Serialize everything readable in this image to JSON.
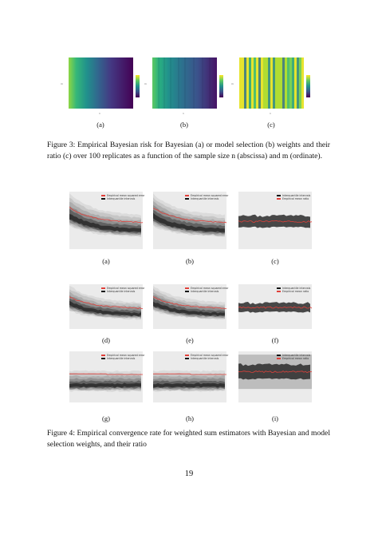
{
  "figure3": {
    "subcaptions": [
      "(a)",
      "(b)",
      "(c)"
    ],
    "caption_prefix": "Figure 3:",
    "caption_body": "Empirical Bayesian risk for Bayesian (a) or model selection (b) weights and their ratio (c) over 100 replicates as a function of the sample size n (abscissa) and m (ordinate)."
  },
  "figure4": {
    "subcaptions": [
      "(a)",
      "(b)",
      "(c)",
      "(d)",
      "(e)",
      "(f)",
      "(g)",
      "(h)",
      "(i)"
    ],
    "caption_prefix": "Figure 4:",
    "caption_body": "Empirical convergence rate for weighted sum estimators with Bayesian and model selection weights, and their ratio",
    "legend_risk": [
      "Empirical mean squared error",
      "Interquantile intervals"
    ],
    "legend_ratio": [
      "Interquantile intervals",
      "Empirical mean ratio"
    ]
  },
  "page_number": "19",
  "colors": {
    "viridis_dark": "#440154",
    "viridis_mid": "#21918c",
    "viridis_light": "#fde725",
    "mean_line": "#e0403a",
    "panel_bg": "#ebebeb"
  }
}
